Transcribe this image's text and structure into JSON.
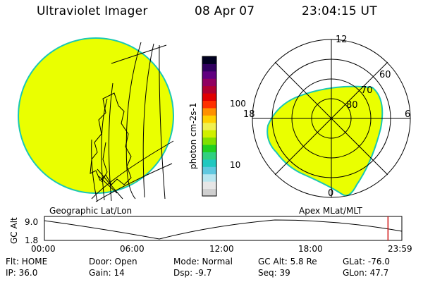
{
  "header": {
    "title": "Ultraviolet Imager",
    "date": "08 Apr 07",
    "time": "23:04:15 UT"
  },
  "colors": {
    "aurora": "#eaff00",
    "aurora_edge": "#19c8b4",
    "marker": "#d01010",
    "background": "#ffffff",
    "line": "#000000"
  },
  "left_panel": {
    "caption": "Geographic Lat/Lon"
  },
  "right_panel": {
    "caption": "Apex MLat/MLT",
    "mlt_labels": [
      "12",
      "18",
      "6",
      "0"
    ],
    "lat_labels": [
      "60",
      "70",
      "80"
    ]
  },
  "colorbar": {
    "unit_label": "photon cm-2s-1",
    "ticks": [
      "100",
      "10"
    ],
    "colors": [
      "#cfcfcf",
      "#e6e6e6",
      "#b8e6f0",
      "#60c8e0",
      "#20c8c0",
      "#30d080",
      "#20d020",
      "#80e000",
      "#d0f000",
      "#f0f050",
      "#ffd000",
      "#ff9000",
      "#ff3000",
      "#e00000",
      "#b00030",
      "#900060",
      "#600080",
      "#300060",
      "#000020"
    ]
  },
  "timeline": {
    "axis_title": "GC Alt",
    "y_ticks": [
      "9.0",
      "1.8"
    ],
    "x_ticks": [
      "00:00",
      "06:00",
      "12:00",
      "18:00",
      "23:59"
    ],
    "marker_hour": 23.07
  },
  "status": {
    "rows": [
      [
        "Flt: HOME",
        "Door: Open",
        "Mode: Normal",
        "GC Alt: 5.8 Re",
        "GLat: -76.0"
      ],
      [
        "IP: 36.0",
        "Gain: 14",
        "Dsp:   -9.7",
        "Seq: 39",
        "GLon:  47.7"
      ]
    ]
  }
}
